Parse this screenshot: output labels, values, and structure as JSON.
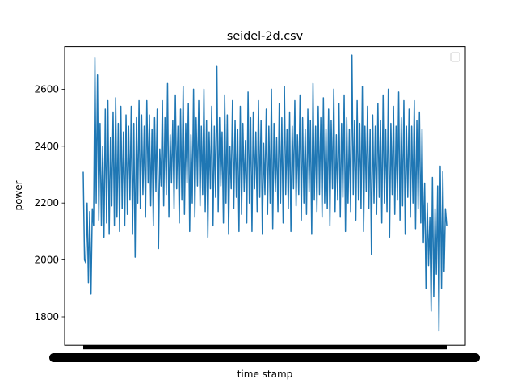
{
  "chart_data": {
    "type": "line",
    "title": "seidel-2d.csv",
    "xlabel": "time stamp",
    "ylabel": "power",
    "ylim": [
      1700,
      2750
    ],
    "yticks": [
      1800,
      2000,
      2200,
      2400,
      2600
    ],
    "ytick_labels": [
      "1800",
      "2000",
      "2200",
      "2400",
      "2600"
    ],
    "grid": false,
    "legend": {
      "placement": "top-right",
      "entries": []
    },
    "x_tick_note": "overlapping unreadable time stamp tick labels",
    "series": [
      {
        "color": "#1f77b4",
        "values": [
          2310,
          2000,
          1990,
          2200,
          1920,
          2170,
          1880,
          2180,
          2120,
          2710,
          2200,
          2650,
          2140,
          2480,
          2120,
          2400,
          2080,
          2530,
          2130,
          2560,
          2090,
          2430,
          2190,
          2520,
          2120,
          2570,
          2150,
          2480,
          2100,
          2540,
          2180,
          2450,
          2120,
          2510,
          2160,
          2470,
          2210,
          2540,
          2090,
          2480,
          2010,
          2500,
          2200,
          2560,
          2180,
          2510,
          2230,
          2470,
          2150,
          2560,
          2270,
          2510,
          2190,
          2460,
          2120,
          2500,
          2240,
          2530,
          2040,
          2390,
          2260,
          2560,
          2190,
          2500,
          2230,
          2620,
          2150,
          2440,
          2270,
          2490,
          2180,
          2580,
          2250,
          2470,
          2130,
          2530,
          2210,
          2610,
          2160,
          2480,
          2270,
          2550,
          2100,
          2440,
          2200,
          2600,
          2150,
          2500,
          2260,
          2560,
          2190,
          2470,
          2230,
          2600,
          2170,
          2490,
          2080,
          2450,
          2250,
          2540,
          2120,
          2470,
          2220,
          2680,
          2170,
          2500,
          2260,
          2450,
          2130,
          2580,
          2200,
          2510,
          2090,
          2400,
          2250,
          2560,
          2180,
          2490,
          2220,
          2460,
          2100,
          2540,
          2160,
          2480,
          2240,
          2420,
          2130,
          2590,
          2200,
          2500,
          2100,
          2520,
          2250,
          2450,
          2170,
          2560,
          2220,
          2490,
          2090,
          2410,
          2230,
          2530,
          2160,
          2470,
          2200,
          2600,
          2110,
          2480,
          2240,
          2430,
          2170,
          2550,
          2200,
          2500,
          2130,
          2610,
          2230,
          2460,
          2180,
          2520,
          2100,
          2470,
          2250,
          2560,
          2190,
          2440,
          2230,
          2580,
          2140,
          2500,
          2200,
          2460,
          2160,
          2530,
          2240,
          2490,
          2090,
          2620,
          2210,
          2470,
          2170,
          2540,
          2230,
          2500,
          2150,
          2570,
          2200,
          2460,
          2180,
          2530,
          2120,
          2490,
          2250,
          2600,
          2170,
          2440,
          2210,
          2550,
          2150,
          2480,
          2220,
          2580,
          2100,
          2500,
          2200,
          2460,
          2170,
          2720,
          2230,
          2490,
          2140,
          2560,
          2210,
          2480,
          2180,
          2610,
          2100,
          2470,
          2240,
          2540,
          2180,
          2460,
          2020,
          2510,
          2200,
          2470,
          2160,
          2550,
          2220,
          2490,
          2130,
          2580,
          2200,
          2460,
          2170,
          2600,
          2080,
          2480,
          2230,
          2540,
          2160,
          2470,
          2210,
          2590,
          2140,
          2500,
          2190,
          2560,
          2090,
          2470,
          2220,
          2530,
          2150,
          2470,
          2200,
          2560,
          2110,
          2490,
          2180,
          2520,
          2130,
          2460,
          2060,
          2270,
          1900,
          2200,
          1980,
          2150,
          1820,
          2290,
          1870,
          2180,
          1950,
          2260,
          1750,
          2330,
          1900,
          2310,
          1960,
          2180,
          2120
        ]
      }
    ]
  }
}
